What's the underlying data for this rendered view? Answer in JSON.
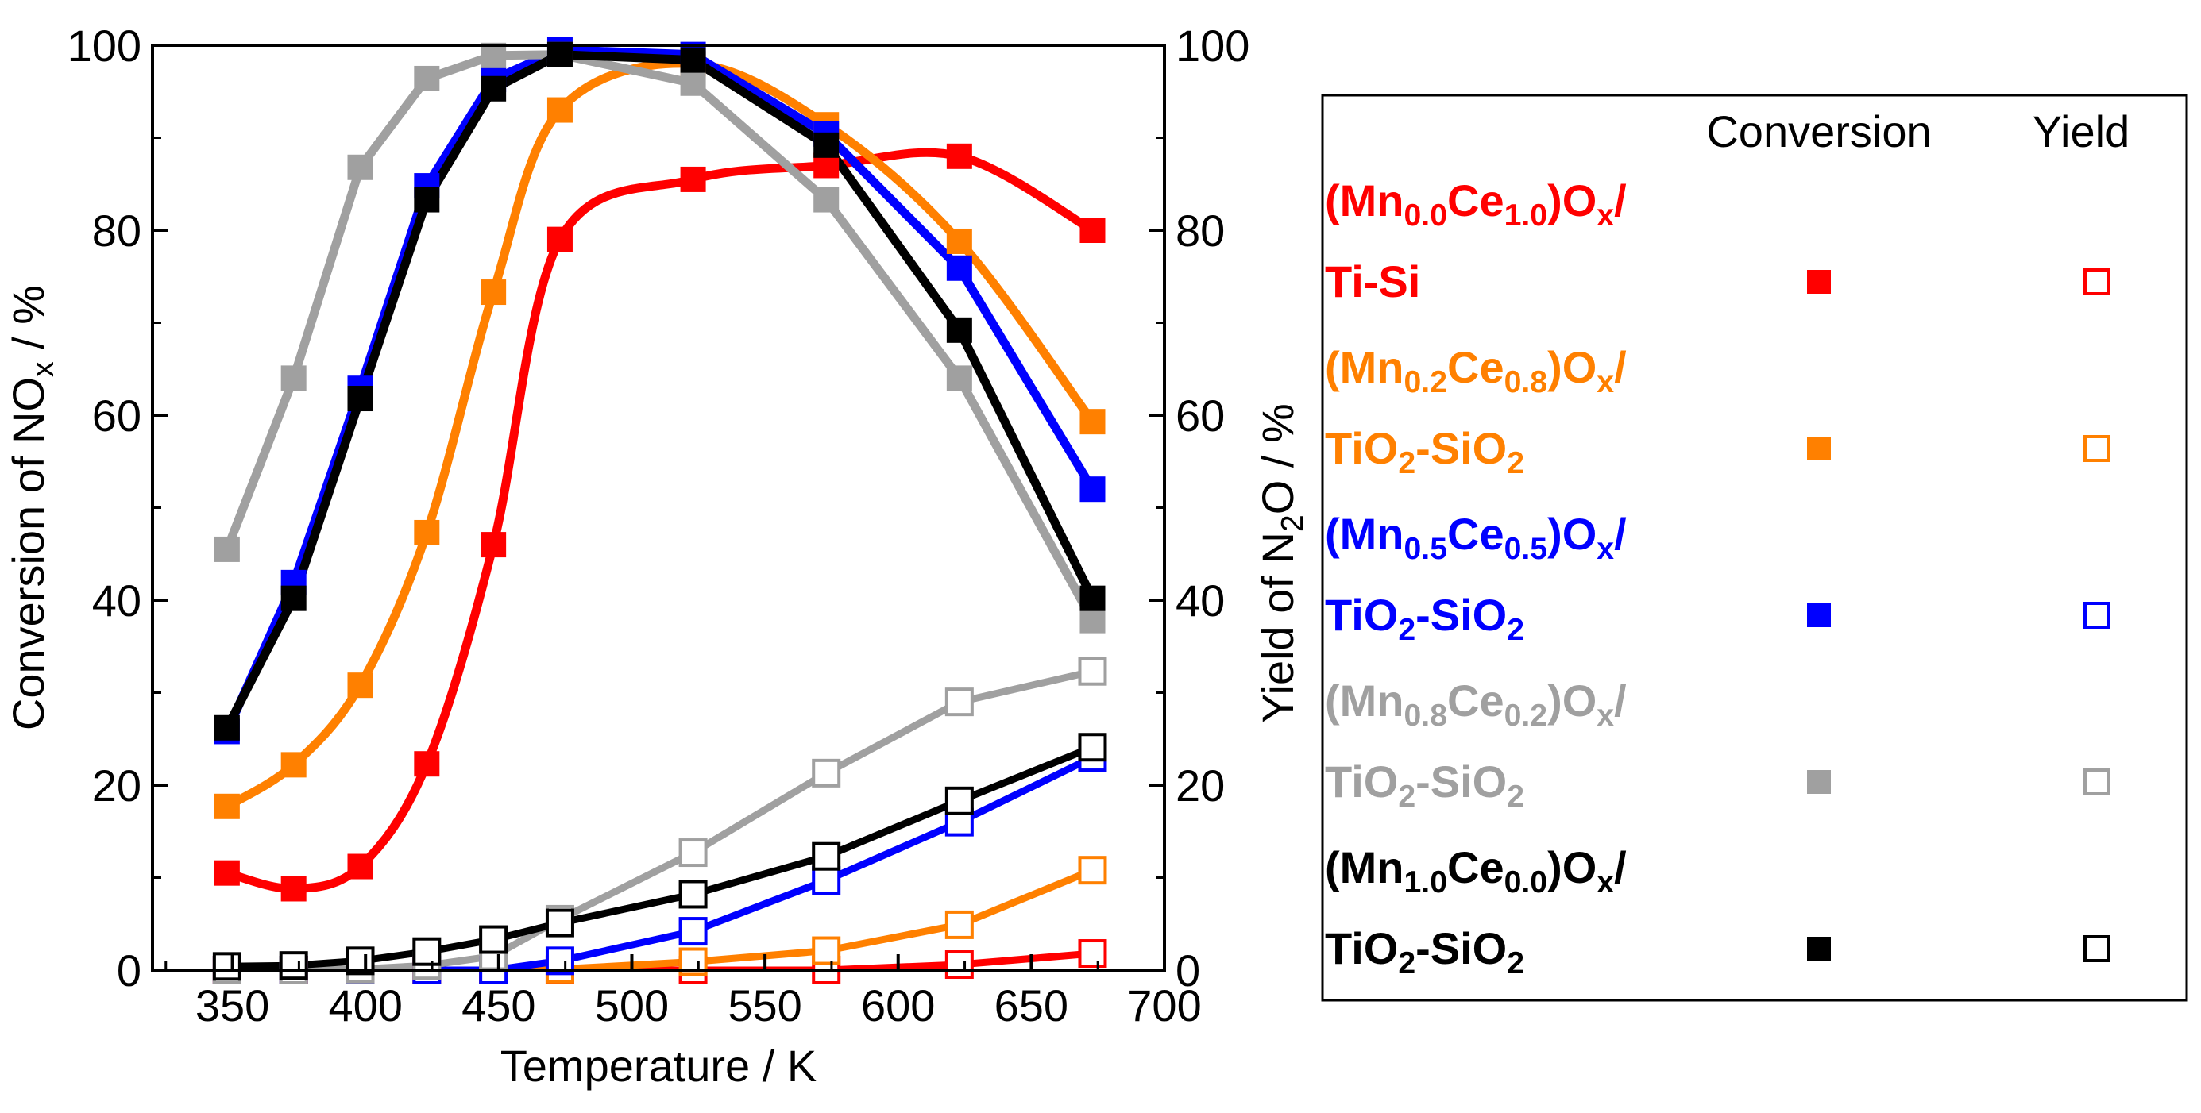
{
  "chart_data": {
    "type": "line",
    "x": [
      348,
      373,
      398,
      423,
      448,
      473,
      523,
      573,
      623,
      673
    ],
    "xlabel": "Temperature / K",
    "xlim": [
      320,
      700
    ],
    "xticks": [
      350,
      400,
      450,
      500,
      550,
      600,
      650,
      700
    ],
    "ylabel_left": {
      "pre": "Conversion of NO",
      "sub": "x",
      "post": " / %"
    },
    "ylabel_right": {
      "pre": "Yield of N",
      "sub": "2",
      "post": "O / %"
    },
    "ylim": [
      0,
      100
    ],
    "yticks": [
      0,
      20,
      40,
      60,
      80,
      100
    ],
    "legend": {
      "header_conversion": "Conversion",
      "header_yield": "Yield",
      "entries": [
        {
          "name": "(Mn0.0Ce1.0)Ox/Ti-Si",
          "line1": [
            [
              "(Mn",
              ""
            ],
            [
              "0.0",
              "sub"
            ],
            [
              "Ce",
              ""
            ],
            [
              "1.0",
              "sub"
            ],
            [
              ")O",
              ""
            ],
            [
              "x",
              "sub"
            ],
            [
              "/",
              ""
            ]
          ],
          "line2": [
            [
              "Ti-Si",
              ""
            ]
          ]
        },
        {
          "name": "(Mn0.2Ce0.8)Ox/TiO2-SiO2",
          "line1": [
            [
              "(Mn",
              ""
            ],
            [
              "0.2",
              "sub"
            ],
            [
              "Ce",
              ""
            ],
            [
              "0.8",
              "sub"
            ],
            [
              ")O",
              ""
            ],
            [
              "x",
              "sub"
            ],
            [
              "/",
              ""
            ]
          ],
          "line2": [
            [
              "TiO",
              ""
            ],
            [
              "2",
              "sub"
            ],
            [
              "-SiO",
              ""
            ],
            [
              "2",
              "sub"
            ]
          ]
        },
        {
          "name": "(Mn0.5Ce0.5)Ox/TiO2-SiO2",
          "line1": [
            [
              "(Mn",
              ""
            ],
            [
              "0.5",
              "sub"
            ],
            [
              "Ce",
              ""
            ],
            [
              "0.5",
              "sub"
            ],
            [
              ")O",
              ""
            ],
            [
              "x",
              "sub"
            ],
            [
              "/",
              ""
            ]
          ],
          "line2": [
            [
              "TiO",
              ""
            ],
            [
              "2",
              "sub"
            ],
            [
              "-SiO",
              ""
            ],
            [
              "2",
              "sub"
            ]
          ]
        },
        {
          "name": "(Mn0.8Ce0.2)Ox/TiO2-SiO2",
          "line1": [
            [
              "(Mn",
              ""
            ],
            [
              "0.8",
              "sub"
            ],
            [
              "Ce",
              ""
            ],
            [
              "0.2",
              "sub"
            ],
            [
              ")O",
              ""
            ],
            [
              "x",
              "sub"
            ],
            [
              "/",
              ""
            ]
          ],
          "line2": [
            [
              "TiO",
              ""
            ],
            [
              "2",
              "sub"
            ],
            [
              "-SiO",
              ""
            ],
            [
              "2",
              "sub"
            ]
          ]
        },
        {
          "name": "(Mn1.0Ce0.0)Ox/TiO2-SiO2",
          "line1": [
            [
              "(Mn",
              ""
            ],
            [
              "1.0",
              "sub"
            ],
            [
              "Ce",
              ""
            ],
            [
              "0.0",
              "sub"
            ],
            [
              ")O",
              ""
            ],
            [
              "x",
              "sub"
            ],
            [
              "/",
              ""
            ]
          ],
          "line2": [
            [
              "TiO",
              ""
            ],
            [
              "2",
              "sub"
            ],
            [
              "-SiO",
              ""
            ],
            [
              "2",
              "sub"
            ]
          ]
        }
      ]
    },
    "series": [
      {
        "name": "(Mn0.0Ce1.0)Ox/Ti-Si",
        "color": "#ff0000",
        "conversion": [
          10.5,
          8.8,
          11.2,
          22.3,
          46.0,
          79.0,
          85.5,
          87.0,
          88.0,
          80.0
        ],
        "yield": [
          0.0,
          0.0,
          0.0,
          0.0,
          0.0,
          0.0,
          0.0,
          0.0,
          0.6,
          1.8
        ]
      },
      {
        "name": "(Mn0.2Ce0.8)Ox/TiO2-SiO2",
        "color": "#ff8000",
        "conversion": [
          17.7,
          22.2,
          30.8,
          47.3,
          73.3,
          93.0,
          98.0,
          91.4,
          78.8,
          59.3
        ],
        "yield": [
          0.0,
          0.0,
          0.0,
          0.0,
          0.0,
          0.1,
          0.9,
          2.1,
          4.9,
          10.8
        ]
      },
      {
        "name": "(Mn0.5Ce0.5)Ox/TiO2-SiO2",
        "color": "#0000ff",
        "conversion": [
          25.8,
          41.9,
          62.9,
          84.8,
          96.3,
          99.5,
          99.0,
          90.4,
          75.9,
          52.0
        ],
        "yield": [
          0.0,
          0.0,
          0.0,
          0.0,
          0.0,
          1.0,
          4.2,
          9.7,
          16.0,
          23.0
        ]
      },
      {
        "name": "(Mn0.8Ce0.2)Ox/TiO2-SiO2",
        "color": "#a0a0a0",
        "conversion": [
          45.5,
          64.0,
          86.8,
          96.4,
          98.9,
          99.0,
          95.9,
          83.3,
          64.0,
          37.8
        ],
        "yield": [
          0.0,
          0.0,
          0.1,
          0.5,
          1.5,
          5.5,
          12.7,
          21.3,
          29.0,
          32.3
        ]
      },
      {
        "name": "(Mn1.0Ce0.0)Ox/TiO2-SiO2",
        "color": "#000000",
        "conversion": [
          26.2,
          40.2,
          61.8,
          83.3,
          95.3,
          99.0,
          98.4,
          89.2,
          69.2,
          40.2
        ],
        "yield": [
          0.4,
          0.5,
          1.0,
          2.0,
          3.3,
          5.1,
          8.2,
          12.3,
          18.3,
          24.1
        ]
      }
    ]
  }
}
